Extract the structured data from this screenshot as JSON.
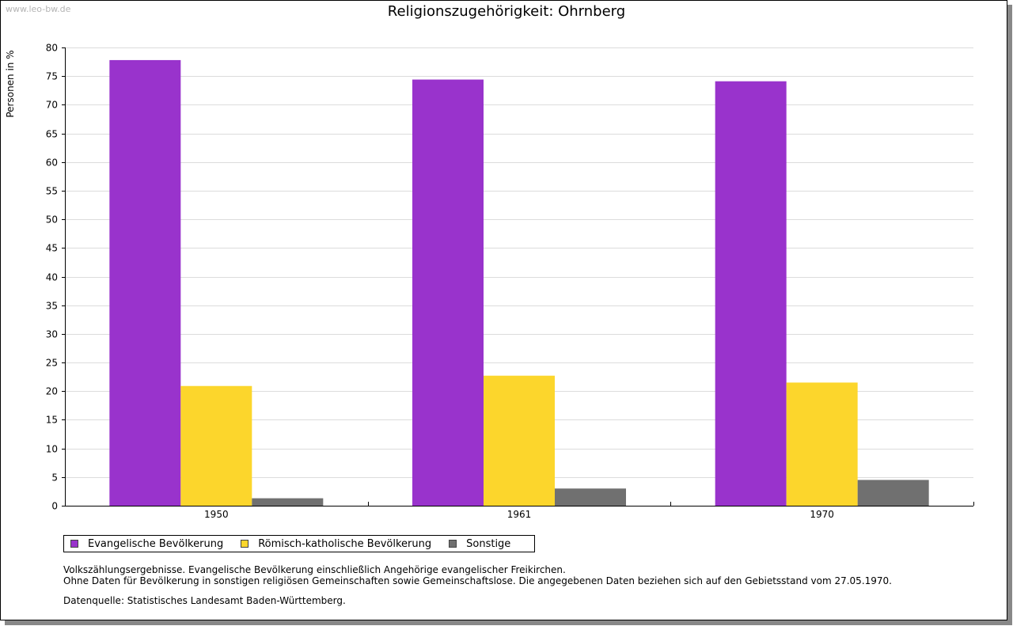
{
  "watermark": "www.leo-bw.de",
  "chart_data": {
    "type": "bar",
    "title": "Religionszugehörigkeit: Ohrnberg",
    "xlabel": "",
    "ylabel": "Personen in %",
    "categories": [
      "1950",
      "1961",
      "1970"
    ],
    "series": [
      {
        "name": "Evangelische Bevölkerung",
        "color": "#9933cc",
        "values": [
          77.8,
          74.4,
          74.1
        ]
      },
      {
        "name": "Römisch-katholische Bevölkerung",
        "color": "#fcd62c",
        "values": [
          20.9,
          22.7,
          21.5
        ]
      },
      {
        "name": "Sonstige",
        "color": "#707070",
        "values": [
          1.3,
          3.0,
          4.5
        ]
      }
    ],
    "ylim": [
      0,
      80
    ],
    "yticks": [
      "0",
      "5",
      "10",
      "15",
      "20",
      "25",
      "30",
      "35",
      "40",
      "45",
      "50",
      "55",
      "60",
      "65",
      "70",
      "75",
      "80"
    ],
    "grid": true,
    "legend_position": "bottom-left"
  },
  "notes": [
    "Volkszählungsergebnisse. Evangelische Bevölkerung einschließlich Angehörige evangelischer Freikirchen.",
    "Ohne Daten für Bevölkerung in sonstigen religiösen Gemeinschaften sowie Gemeinschaftslose. Die angegebenen Daten beziehen sich auf den Gebietsstand vom 27.05.1970."
  ],
  "source": "Datenquelle: Statistisches Landesamt Baden-Württemberg."
}
